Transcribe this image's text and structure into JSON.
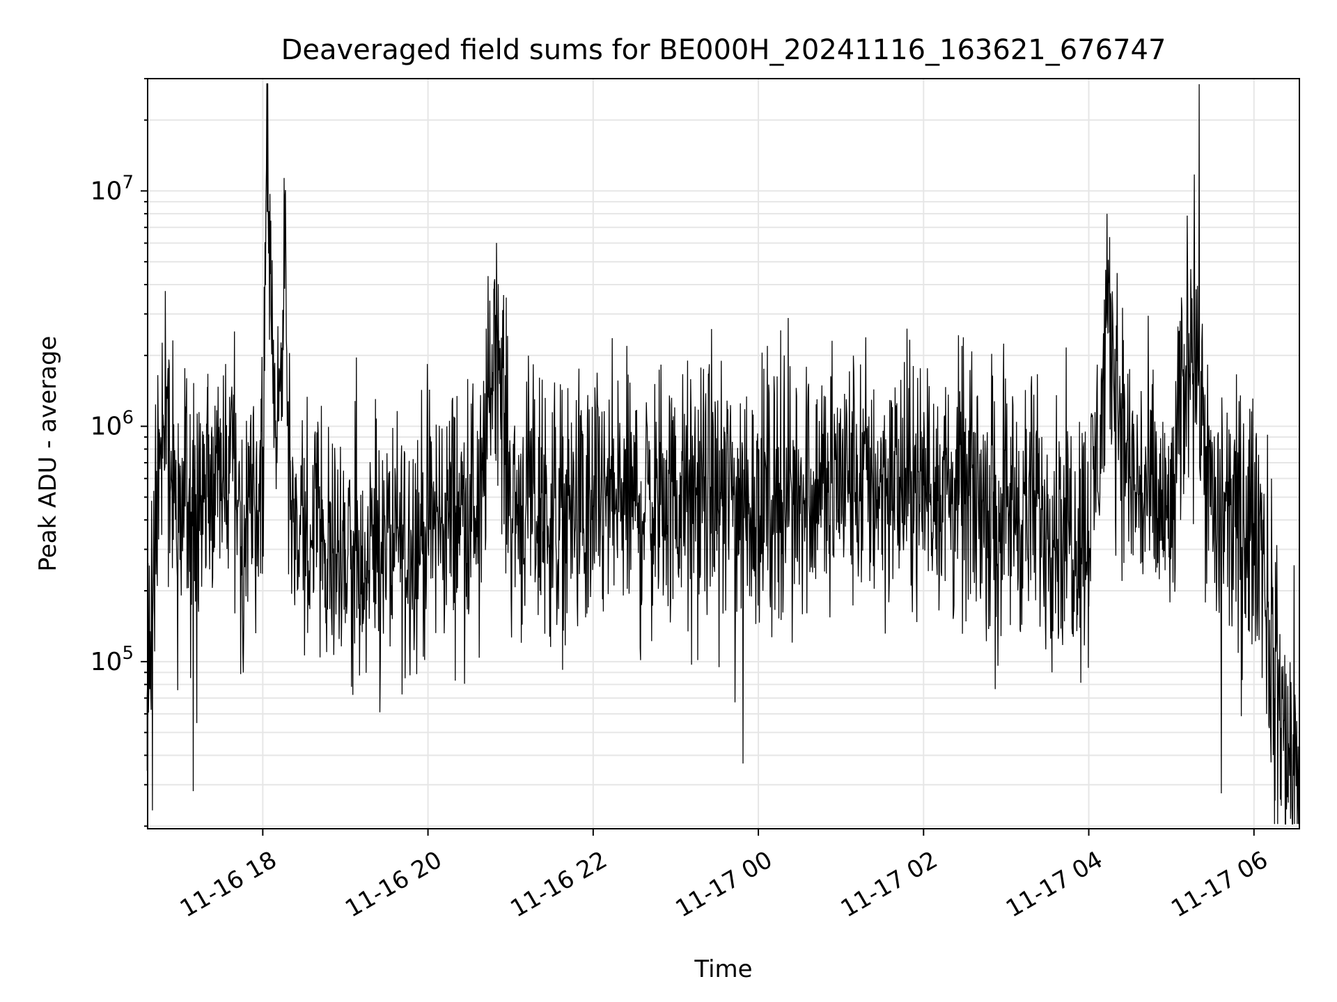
{
  "chart_data": {
    "type": "line",
    "title": "Deaveraged field sums for BE000H_20241116_163621_676747",
    "xlabel": "Time",
    "ylabel": "Peak ADU - average",
    "x_range": [
      "2024-11-16T16:36:21",
      "2024-11-17T06:33:00"
    ],
    "xlim_hours": [
      16.606,
      30.55
    ],
    "x_ticks": [
      {
        "label": "11-16 18",
        "value": "2024-11-16T18:00"
      },
      {
        "label": "11-16 20",
        "value": "2024-11-16T20:00"
      },
      {
        "label": "11-16 22",
        "value": "2024-11-16T22:00"
      },
      {
        "label": "11-17 00",
        "value": "2024-11-17T00:00"
      },
      {
        "label": "11-17 02",
        "value": "2024-11-17T02:00"
      },
      {
        "label": "11-17 04",
        "value": "2024-11-17T04:00"
      },
      {
        "label": "11-17 06",
        "value": "2024-11-17T06:00"
      }
    ],
    "y_scale": "log",
    "ylim": [
      19500,
      30000000
    ],
    "y_ticks": [
      {
        "base": "10",
        "exp": "5",
        "value": 100000
      },
      {
        "base": "10",
        "exp": "6",
        "value": 1000000
      },
      {
        "base": "10",
        "exp": "7",
        "value": 10000000
      }
    ],
    "grid": true,
    "legend": "none",
    "line_color": "#000000",
    "grid_color": "#e6e6e6",
    "series": [
      {
        "x": [
          "2024-11-16T16:36",
          "2024-11-16T16:40",
          "2024-11-16T16:45",
          "2024-11-16T16:50",
          "2024-11-16T16:55",
          "2024-11-16T17:00",
          "2024-11-16T17:10",
          "2024-11-16T17:20",
          "2024-11-16T17:30",
          "2024-11-16T17:40",
          "2024-11-16T17:50",
          "2024-11-16T18:00",
          "2024-11-16T18:03",
          "2024-11-16T18:06",
          "2024-11-16T18:10",
          "2024-11-16T18:16",
          "2024-11-16T18:20",
          "2024-11-16T18:30",
          "2024-11-16T18:45",
          "2024-11-16T19:00",
          "2024-11-16T19:20",
          "2024-11-16T19:40",
          "2024-11-16T20:00",
          "2024-11-16T20:20",
          "2024-11-16T20:40",
          "2024-11-16T20:48",
          "2024-11-16T21:00",
          "2024-11-16T21:30",
          "2024-11-16T22:00",
          "2024-11-16T22:30",
          "2024-11-16T23:00",
          "2024-11-16T23:30",
          "2024-11-17T00:00",
          "2024-11-17T00:30",
          "2024-11-17T01:00",
          "2024-11-17T01:30",
          "2024-11-17T02:00",
          "2024-11-17T02:30",
          "2024-11-17T03:00",
          "2024-11-17T03:30",
          "2024-11-17T04:00",
          "2024-11-17T04:15",
          "2024-11-17T04:30",
          "2024-11-17T05:00",
          "2024-11-17T05:15",
          "2024-11-17T05:30",
          "2024-11-17T06:00",
          "2024-11-17T06:05",
          "2024-11-17T06:15",
          "2024-11-17T06:25",
          "2024-11-17T06:33"
        ],
        "y": [
          70000,
          150000,
          800000,
          1200000,
          500000,
          450000,
          480000,
          500000,
          520000,
          500000,
          500000,
          560000,
          22000000,
          3000000,
          900000,
          5500000,
          400000,
          350000,
          330000,
          300000,
          300000,
          330000,
          380000,
          430000,
          500000,
          3500000,
          480000,
          420000,
          460000,
          480000,
          480000,
          520000,
          500000,
          560000,
          600000,
          580000,
          560000,
          520000,
          470000,
          420000,
          360000,
          2500000,
          600000,
          380000,
          3500000,
          400000,
          370000,
          380000,
          70000,
          45000,
          28000
        ]
      }
    ]
  }
}
